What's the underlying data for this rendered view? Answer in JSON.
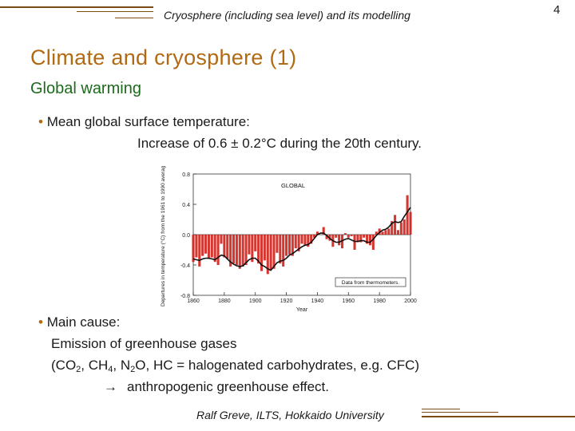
{
  "header": {
    "title": "Cryosphere (including sea level) and its modelling",
    "page_number": "4"
  },
  "slide": {
    "title": "Climate and cryosphere (1)",
    "subtitle": "Global warming"
  },
  "bullet1": {
    "marker": "•",
    "text": "Mean global surface temperature:",
    "detail": "Increase of 0.6 ± 0.2°C during the 20th century."
  },
  "bullet2": {
    "marker": "•",
    "text": "Main cause:",
    "line1": "Emission of greenhouse gases",
    "line2_a": "(CO",
    "line2_sub1": "2",
    "line2_b": ", CH",
    "line2_sub2": "4",
    "line2_c": ", N",
    "line2_sub3": "2",
    "line2_d": "O, HC = halogenated carbohydrates, e.g. CFC)",
    "arrow": "→",
    "line3": "anthropogenic greenhouse effect."
  },
  "footer": {
    "text": "Ralf Greve, ILTS, Hokkaido University"
  },
  "colors": {
    "accent": "#b26a12",
    "subtitle": "#1c6a1c",
    "rule": "#7a4b14",
    "bar": "#d0201a"
  },
  "chart_data": {
    "type": "bar",
    "title": "GLOBAL",
    "ylabel": "Departures in temperature (°C) from the 1961 to 1990 average",
    "xlabel": "Year",
    "annotation": "Data from thermometers.",
    "xlim": [
      1860,
      2000
    ],
    "ylim": [
      -0.8,
      0.8
    ],
    "xticks": [
      "1860",
      "1880",
      "1900",
      "1920",
      "1940",
      "1960",
      "1980",
      "2000"
    ],
    "yticks": [
      "0.8",
      "0.4",
      "0.0",
      "-0.4",
      "-0.8"
    ],
    "years": [
      1860,
      1862,
      1864,
      1866,
      1868,
      1870,
      1872,
      1874,
      1876,
      1878,
      1880,
      1882,
      1884,
      1886,
      1888,
      1890,
      1892,
      1894,
      1896,
      1898,
      1900,
      1902,
      1904,
      1906,
      1908,
      1910,
      1912,
      1914,
      1916,
      1918,
      1920,
      1922,
      1924,
      1926,
      1928,
      1930,
      1932,
      1934,
      1936,
      1938,
      1940,
      1942,
      1944,
      1946,
      1948,
      1950,
      1952,
      1954,
      1956,
      1958,
      1960,
      1962,
      1964,
      1966,
      1968,
      1970,
      1972,
      1974,
      1976,
      1978,
      1980,
      1982,
      1984,
      1986,
      1988,
      1990,
      1992,
      1994,
      1996,
      1998,
      2000
    ],
    "values": [
      -0.36,
      -0.3,
      -0.42,
      -0.28,
      -0.25,
      -0.32,
      -0.3,
      -0.36,
      -0.4,
      -0.12,
      -0.3,
      -0.32,
      -0.42,
      -0.38,
      -0.4,
      -0.45,
      -0.42,
      -0.4,
      -0.26,
      -0.36,
      -0.22,
      -0.38,
      -0.48,
      -0.34,
      -0.52,
      -0.46,
      -0.45,
      -0.24,
      -0.38,
      -0.42,
      -0.28,
      -0.26,
      -0.28,
      -0.18,
      -0.22,
      -0.12,
      -0.14,
      -0.16,
      -0.12,
      -0.04,
      0.04,
      0.0,
      0.1,
      -0.06,
      -0.08,
      -0.16,
      -0.04,
      -0.14,
      -0.18,
      0.02,
      -0.04,
      -0.02,
      -0.2,
      -0.1,
      -0.1,
      -0.04,
      -0.12,
      -0.14,
      -0.2,
      0.04,
      0.08,
      0.04,
      0.06,
      0.08,
      0.18,
      0.26,
      0.06,
      0.16,
      0.2,
      0.52,
      0.3
    ],
    "smoothed": [
      -0.32,
      -0.33,
      -0.34,
      -0.32,
      -0.31,
      -0.31,
      -0.32,
      -0.33,
      -0.3,
      -0.27,
      -0.28,
      -0.32,
      -0.36,
      -0.39,
      -0.41,
      -0.42,
      -0.41,
      -0.37,
      -0.33,
      -0.31,
      -0.31,
      -0.35,
      -0.4,
      -0.42,
      -0.45,
      -0.47,
      -0.42,
      -0.37,
      -0.35,
      -0.34,
      -0.31,
      -0.27,
      -0.25,
      -0.22,
      -0.19,
      -0.16,
      -0.14,
      -0.13,
      -0.1,
      -0.05,
      0.0,
      0.02,
      0.02,
      -0.01,
      -0.05,
      -0.08,
      -0.1,
      -0.1,
      -0.08,
      -0.06,
      -0.05,
      -0.07,
      -0.09,
      -0.09,
      -0.08,
      -0.08,
      -0.1,
      -0.1,
      -0.06,
      -0.01,
      0.03,
      0.06,
      0.07,
      0.1,
      0.15,
      0.17,
      0.16,
      0.17,
      0.24,
      0.3,
      0.36
    ]
  }
}
